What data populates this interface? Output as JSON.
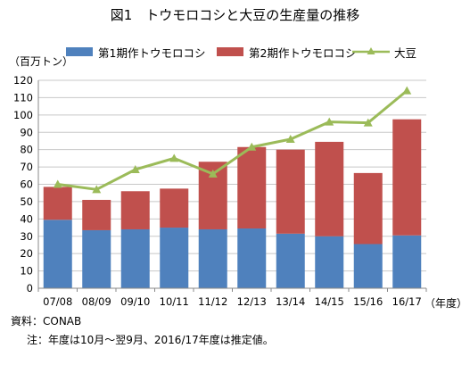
{
  "title": "図1　トウモロコシと大豆の生産量の推移",
  "unit_label": "（百万トン）",
  "x_unit_label": "（年度）",
  "source": "資料：CONAB",
  "note": "注：年度は10月〜翌9月、2016/17年度は推定値。",
  "colors": {
    "corn1": "#4f81bd",
    "corn2": "#c0504d",
    "soy": "#9bbb59",
    "grid": "#c8c8c8"
  },
  "chart_data": {
    "type": "bar",
    "stacked": true,
    "categories": [
      "07/08",
      "08/09",
      "09/10",
      "10/11",
      "11/12",
      "12/13",
      "13/14",
      "14/15",
      "15/16",
      "16/17"
    ],
    "series": [
      {
        "name": "第1期作トウモロコシ",
        "type": "bar",
        "values": [
          39.5,
          33.5,
          34,
          35,
          34,
          34.5,
          31.5,
          30,
          25.5,
          30.5
        ]
      },
      {
        "name": "第2期作トウモロコシ",
        "type": "bar",
        "values": [
          19,
          17.5,
          22,
          22.5,
          39,
          47,
          48.5,
          54.5,
          41,
          67
        ]
      },
      {
        "name": "大豆",
        "type": "line",
        "values": [
          60,
          57,
          68.5,
          75,
          66,
          81.5,
          86,
          96,
          95.5,
          114
        ]
      }
    ],
    "ylim": [
      0,
      120
    ],
    "yticks": [
      "0",
      "10",
      "20",
      "30",
      "40",
      "50",
      "60",
      "70",
      "80",
      "90",
      "100",
      "110",
      "120"
    ],
    "grid": true,
    "legend_position": "top"
  }
}
